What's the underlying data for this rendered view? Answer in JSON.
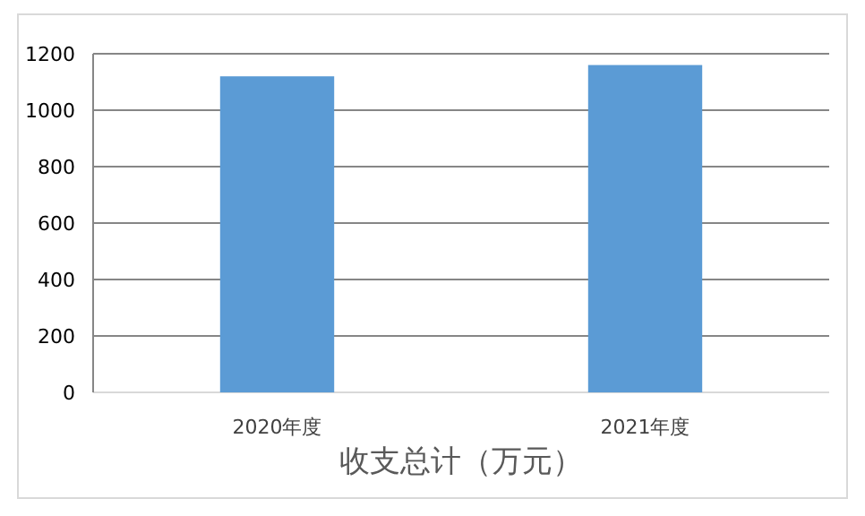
{
  "chart_data": {
    "type": "bar",
    "title": "收支总计（万元）",
    "categories": [
      "2020年度",
      "2021年度"
    ],
    "values": [
      1120,
      1160
    ],
    "color": "#5b9bd5",
    "ylim": [
      0,
      1200
    ],
    "yticks": [
      0,
      200,
      400,
      600,
      800,
      1000,
      1200
    ],
    "grid": "y"
  }
}
